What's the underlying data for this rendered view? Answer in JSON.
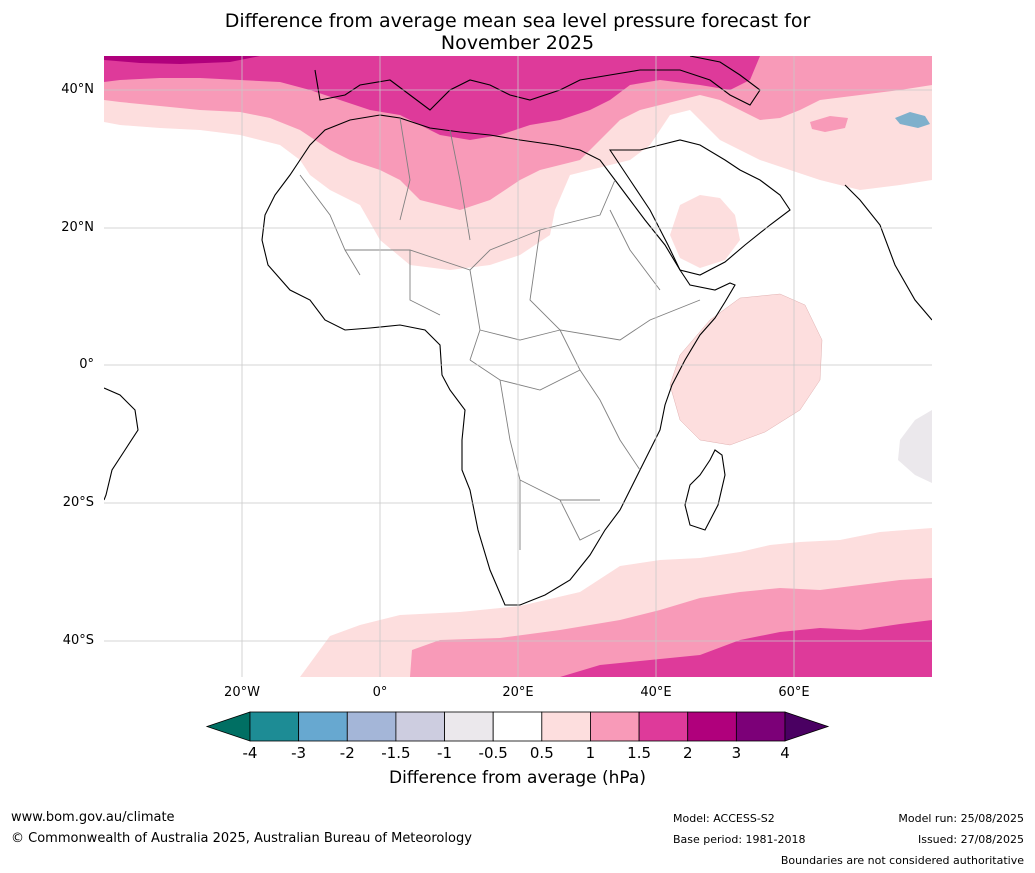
{
  "title_line1": "Difference from average mean sea level pressure forecast for",
  "title_line2": "November 2025",
  "lat_labels": [
    "40°N",
    "20°N",
    "0°",
    "20°S",
    "40°S"
  ],
  "lon_labels": [
    "20°W",
    "0°",
    "20°E",
    "40°E",
    "60°E"
  ],
  "colorbar": {
    "ticks": [
      "-4",
      "-3",
      "-2",
      "-1.5",
      "-1",
      "-0.5",
      "0.5",
      "1",
      "1.5",
      "2",
      "3",
      "4"
    ],
    "colors": [
      "#1d8c95",
      "#67a8d0",
      "#a4b6d8",
      "#cdcde0",
      "#ebe8ec",
      "#ffffff",
      "#fddede",
      "#f89ab8",
      "#de3a9a",
      "#b0007c",
      "#7c0078"
    ],
    "under_color": "#006f63",
    "over_color": "#4a0062",
    "label": "Difference from average (hPa)"
  },
  "footer": {
    "url": "www.bom.gov.au/climate",
    "copyright": "© Commonwealth of Australia 2025, Australian Bureau of Meteorology",
    "model": "Model: ACCESS-S2",
    "base_period": "Base period: 1981-2018",
    "model_run": "Model run: 25/08/2025",
    "issued": "Issued: 27/08/2025",
    "disclaimer": "Boundaries are not considered authoritative"
  }
}
